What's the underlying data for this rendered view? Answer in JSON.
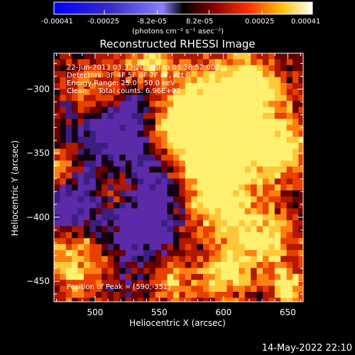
{
  "colorbar": {
    "tick_labels": [
      "-0.00041",
      "-0.00025",
      "-8.2e-05",
      "8.2e-05",
      "0.00025",
      "0.00041"
    ],
    "range": [
      -0.00041,
      0.00041
    ],
    "unit_label": "(photons cm⁻² s⁻¹ asec⁻²)"
  },
  "chart_data": {
    "type": "heatmap",
    "title": "Reconstructed RHESSI Image",
    "xlabel": "Heliocentric X (arcsec)",
    "ylabel": "Heliocentric Y (arcsec)",
    "xlim": [
      468,
      662
    ],
    "ylim": [
      -466,
      -272
    ],
    "x_ticks": [
      500,
      550,
      600,
      650
    ],
    "y_ticks": [
      -300,
      -350,
      -400,
      -450
    ],
    "annotations": [
      "22-Jun-2013 03:32:20.000 to 03:36:52.000",
      "Detectors: 3F 4F 5F 6F 7F 8F, Att 0",
      "Energy Range: 25.0 - 50.0 keV",
      "Clean     Total counts: 6.96E+03"
    ],
    "peak_label": "Position of Peak = [590,-351]",
    "peak": [
      590,
      -351
    ],
    "colormap": [
      "#0000ff",
      "#4b1fa8",
      "#7a45cc",
      "#0a0004",
      "#7a0a00",
      "#d43000",
      "#ff8000",
      "#ffd24a",
      "#ffffff"
    ]
  },
  "footer": {
    "date": "14-May-2022 22:10"
  }
}
